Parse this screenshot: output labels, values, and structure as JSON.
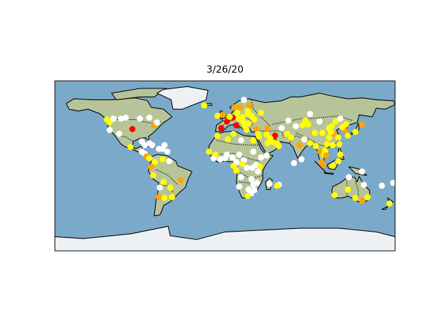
{
  "title": "3/26/20",
  "map": {
    "projection": "equirectangular",
    "lon_range": [
      -180,
      180
    ],
    "lat_range": [
      -90,
      90
    ],
    "ocean_color": "#7ba9c9",
    "land_color": "#b7c49a",
    "ice_color": "#eef1f4",
    "coastline_color": "#000000",
    "border_style": "dotted"
  },
  "legend_colors": {
    "none": "#ffffff",
    "low": "#ffff00",
    "medium": "#ffa500",
    "high": "#ff0000"
  },
  "points": [
    {
      "lon": -98,
      "lat": 39,
      "level": "high"
    },
    {
      "lon": -75,
      "lat": 43,
      "level": "medium"
    },
    {
      "lon": -125,
      "lat": 49,
      "level": "low"
    },
    {
      "lon": -122,
      "lat": 46,
      "level": "low"
    },
    {
      "lon": -118,
      "lat": 50,
      "level": "none"
    },
    {
      "lon": -110,
      "lat": 50,
      "level": "none"
    },
    {
      "lon": -105,
      "lat": 51,
      "level": "none"
    },
    {
      "lon": -90,
      "lat": 50,
      "level": "none"
    },
    {
      "lon": -80,
      "lat": 51,
      "level": "none"
    },
    {
      "lon": -72,
      "lat": 46,
      "level": "none"
    },
    {
      "lon": -122,
      "lat": 38,
      "level": "none"
    },
    {
      "lon": -112,
      "lat": 34,
      "level": "none"
    },
    {
      "lon": -100,
      "lat": 20,
      "level": "low"
    },
    {
      "lon": -88,
      "lat": 26,
      "level": "none"
    },
    {
      "lon": -85,
      "lat": 22,
      "level": "none"
    },
    {
      "lon": -80,
      "lat": 24,
      "level": "none"
    },
    {
      "lon": -77,
      "lat": 22,
      "level": "none"
    },
    {
      "lon": -70,
      "lat": 18,
      "level": "none"
    },
    {
      "lon": -66,
      "lat": 18,
      "level": "none"
    },
    {
      "lon": -61,
      "lat": 15,
      "level": "none"
    },
    {
      "lon": -64,
      "lat": 22,
      "level": "none"
    },
    {
      "lon": -85,
      "lat": 13,
      "level": "none"
    },
    {
      "lon": -88,
      "lat": 15,
      "level": "none"
    },
    {
      "lon": -83,
      "lat": 10,
      "level": "medium"
    },
    {
      "lon": -80,
      "lat": 8,
      "level": "low"
    },
    {
      "lon": -74,
      "lat": 4,
      "level": "low"
    },
    {
      "lon": -66,
      "lat": 7,
      "level": "low"
    },
    {
      "lon": -59,
      "lat": 5,
      "level": "none"
    },
    {
      "lon": -78,
      "lat": -1,
      "level": "medium"
    },
    {
      "lon": -76,
      "lat": -10,
      "level": "low"
    },
    {
      "lon": -65,
      "lat": -17,
      "level": "low"
    },
    {
      "lon": -58,
      "lat": -23,
      "level": "low"
    },
    {
      "lon": -56,
      "lat": -33,
      "level": "low"
    },
    {
      "lon": -47,
      "lat": -15,
      "level": "medium"
    },
    {
      "lon": -70,
      "lat": -33,
      "level": "medium"
    },
    {
      "lon": -64,
      "lat": -34,
      "level": "low"
    },
    {
      "lon": -69,
      "lat": -23,
      "level": "none"
    },
    {
      "lon": -22,
      "lat": 64,
      "level": "low"
    },
    {
      "lon": -8,
      "lat": 53,
      "level": "low"
    },
    {
      "lon": -2,
      "lat": 54,
      "level": "medium"
    },
    {
      "lon": 2,
      "lat": 47,
      "level": "high"
    },
    {
      "lon": -4,
      "lat": 40,
      "level": "high"
    },
    {
      "lon": 12,
      "lat": 43,
      "level": "high"
    },
    {
      "lon": 8,
      "lat": 51,
      "level": "high"
    },
    {
      "lon": 10,
      "lat": 62,
      "level": "medium"
    },
    {
      "lon": 16,
      "lat": 62,
      "level": "medium"
    },
    {
      "lon": 26,
      "lat": 64,
      "level": "medium"
    },
    {
      "lon": 24,
      "lat": 58,
      "level": "low"
    },
    {
      "lon": 25,
      "lat": 55,
      "level": "low"
    },
    {
      "lon": 19,
      "lat": 52,
      "level": "low"
    },
    {
      "lon": 15,
      "lat": 50,
      "level": "low"
    },
    {
      "lon": 19,
      "lat": 47,
      "level": "low"
    },
    {
      "lon": 25,
      "lat": 45,
      "level": "low"
    },
    {
      "lon": 21,
      "lat": 42,
      "level": "low"
    },
    {
      "lon": 23,
      "lat": 38,
      "level": "low"
    },
    {
      "lon": 33,
      "lat": 39,
      "level": "medium"
    },
    {
      "lon": 31,
      "lat": 49,
      "level": "low"
    },
    {
      "lon": 28,
      "lat": 53,
      "level": "low"
    },
    {
      "lon": 38,
      "lat": 56,
      "level": "low"
    },
    {
      "lon": 5,
      "lat": 52,
      "level": "low"
    },
    {
      "lon": 13,
      "lat": 56,
      "level": "low"
    },
    {
      "lon": 20,
      "lat": 70,
      "level": "none"
    },
    {
      "lon": 53,
      "lat": 32,
      "level": "high"
    },
    {
      "lon": 45,
      "lat": 40,
      "level": "medium"
    },
    {
      "lon": 44,
      "lat": 33,
      "level": "low"
    },
    {
      "lon": 45,
      "lat": 24,
      "level": "low"
    },
    {
      "lon": 51,
      "lat": 25,
      "level": "low"
    },
    {
      "lon": 55,
      "lat": 24,
      "level": "low"
    },
    {
      "lon": 57,
      "lat": 21,
      "level": "low"
    },
    {
      "lon": 48,
      "lat": 29,
      "level": "low"
    },
    {
      "lon": 36,
      "lat": 31,
      "level": "low"
    },
    {
      "lon": 35,
      "lat": 34,
      "level": "low"
    },
    {
      "lon": 30,
      "lat": 27,
      "level": "low"
    },
    {
      "lon": 67,
      "lat": 48,
      "level": "none"
    },
    {
      "lon": 60,
      "lat": 40,
      "level": "none"
    },
    {
      "lon": 75,
      "lat": 42,
      "level": "none"
    },
    {
      "lon": 66,
      "lat": 34,
      "level": "low"
    },
    {
      "lon": 70,
      "lat": 30,
      "level": "low"
    },
    {
      "lon": 79,
      "lat": 22,
      "level": "medium"
    },
    {
      "lon": 84,
      "lat": 28,
      "level": "none"
    },
    {
      "lon": 90,
      "lat": 24,
      "level": "low"
    },
    {
      "lon": 81,
      "lat": 7,
      "level": "none"
    },
    {
      "lon": 73,
      "lat": 3,
      "level": "none"
    },
    {
      "lon": 96,
      "lat": 21,
      "level": "low"
    },
    {
      "lon": 101,
      "lat": 15,
      "level": "medium"
    },
    {
      "lon": 106,
      "lat": 16,
      "level": "low"
    },
    {
      "lon": 105,
      "lat": 12,
      "level": "low"
    },
    {
      "lon": 102,
      "lat": 4,
      "level": "medium"
    },
    {
      "lon": 104,
      "lat": 1,
      "level": "medium"
    },
    {
      "lon": 114,
      "lat": 0,
      "level": "low"
    },
    {
      "lon": 120,
      "lat": 5,
      "level": "low"
    },
    {
      "lon": 122,
      "lat": 12,
      "level": "low"
    },
    {
      "lon": 121,
      "lat": 23,
      "level": "low"
    },
    {
      "lon": 114,
      "lat": 22,
      "level": "low"
    },
    {
      "lon": 103,
      "lat": 35,
      "level": "low"
    },
    {
      "lon": 110,
      "lat": 40,
      "level": "low"
    },
    {
      "lon": 115,
      "lat": 34,
      "level": "medium"
    },
    {
      "lon": 120,
      "lat": 30,
      "level": "low"
    },
    {
      "lon": 127,
      "lat": 37,
      "level": "medium"
    },
    {
      "lon": 138,
      "lat": 36,
      "level": "low"
    },
    {
      "lon": 128,
      "lat": 44,
      "level": "low"
    },
    {
      "lon": 100,
      "lat": 47,
      "level": "none"
    },
    {
      "lon": 90,
      "lat": 55,
      "level": "none"
    },
    {
      "lon": 82,
      "lat": 43,
      "level": "low"
    },
    {
      "lon": 117,
      "lat": 47,
      "level": "low"
    },
    {
      "lon": 107,
      "lat": 11,
      "level": "medium"
    },
    {
      "lon": 88,
      "lat": 44,
      "level": "low"
    },
    {
      "lon": 124,
      "lat": 41,
      "level": "low"
    },
    {
      "lon": 110,
      "lat": 30,
      "level": "low"
    },
    {
      "lon": 95,
      "lat": 35,
      "level": "low"
    },
    {
      "lon": 108,
      "lat": 23,
      "level": "low"
    },
    {
      "lon": 112,
      "lat": 36,
      "level": "low"
    },
    {
      "lon": 85,
      "lat": 48,
      "level": "low"
    },
    {
      "lon": 113,
      "lat": 42,
      "level": "low"
    },
    {
      "lon": 122,
      "lat": 50,
      "level": "none"
    },
    {
      "lon": 130,
      "lat": 32,
      "level": "low"
    },
    {
      "lon": 145,
      "lat": 44,
      "level": "medium"
    },
    {
      "lon": 131,
      "lat": -12,
      "level": "none"
    },
    {
      "lon": 130,
      "lat": -25,
      "level": "low"
    },
    {
      "lon": 116,
      "lat": -31,
      "level": "low"
    },
    {
      "lon": 138,
      "lat": -34,
      "level": "low"
    },
    {
      "lon": 145,
      "lat": -37,
      "level": "medium"
    },
    {
      "lon": 151,
      "lat": -33,
      "level": "low"
    },
    {
      "lon": 147,
      "lat": -20,
      "level": "none"
    },
    {
      "lon": 166,
      "lat": -21,
      "level": "none"
    },
    {
      "lon": 178,
      "lat": -18,
      "level": "none"
    },
    {
      "lon": 174,
      "lat": -40,
      "level": "low"
    },
    {
      "lon": 145,
      "lat": -6,
      "level": "none"
    },
    {
      "lon": -17,
      "lat": 15,
      "level": "low"
    },
    {
      "lon": -10,
      "lat": 12,
      "level": "low"
    },
    {
      "lon": -8,
      "lat": 32,
      "level": "low"
    },
    {
      "lon": 3,
      "lat": 28,
      "level": "low"
    },
    {
      "lon": 9,
      "lat": 34,
      "level": "low"
    },
    {
      "lon": 17,
      "lat": 27,
      "level": "none"
    },
    {
      "lon": -12,
      "lat": 8,
      "level": "none"
    },
    {
      "lon": -5,
      "lat": 7,
      "level": "none"
    },
    {
      "lon": 0,
      "lat": 8,
      "level": "none"
    },
    {
      "lon": 2,
      "lat": 12,
      "level": "none"
    },
    {
      "lon": 8,
      "lat": 9,
      "level": "none"
    },
    {
      "lon": 12,
      "lat": 4,
      "level": "none"
    },
    {
      "lon": 15,
      "lat": 12,
      "level": "none"
    },
    {
      "lon": 20,
      "lat": 6,
      "level": "none"
    },
    {
      "lon": 23,
      "lat": -2,
      "level": "none"
    },
    {
      "lon": 29,
      "lat": -2,
      "level": "none"
    },
    {
      "lon": 30,
      "lat": 15,
      "level": "none"
    },
    {
      "lon": 33,
      "lat": 1,
      "level": "none"
    },
    {
      "lon": 38,
      "lat": 9,
      "level": "none"
    },
    {
      "lon": 37,
      "lat": -1,
      "level": "low"
    },
    {
      "lon": 44,
      "lat": 11,
      "level": "none"
    },
    {
      "lon": 35,
      "lat": -6,
      "level": "none"
    },
    {
      "lon": 28,
      "lat": -14,
      "level": "none"
    },
    {
      "lon": 17,
      "lat": -12,
      "level": "none"
    },
    {
      "lon": 15,
      "lat": -22,
      "level": "none"
    },
    {
      "lon": 30,
      "lat": -20,
      "level": "none"
    },
    {
      "lon": 25,
      "lat": -25,
      "level": "none"
    },
    {
      "lon": 34,
      "lat": -18,
      "level": "none"
    },
    {
      "lon": 47,
      "lat": -19,
      "level": "none"
    },
    {
      "lon": 57,
      "lat": -20,
      "level": "none"
    },
    {
      "lon": 31,
      "lat": -26,
      "level": "none"
    },
    {
      "lon": 28,
      "lat": -29,
      "level": "none"
    },
    {
      "lon": 24,
      "lat": -32,
      "level": "low"
    },
    {
      "lon": 55,
      "lat": -21,
      "level": "low"
    },
    {
      "lon": 18,
      "lat": 2,
      "level": "low"
    },
    {
      "lon": 9,
      "lat": 0,
      "level": "low"
    },
    {
      "lon": 12,
      "lat": -5,
      "level": "low"
    }
  ]
}
